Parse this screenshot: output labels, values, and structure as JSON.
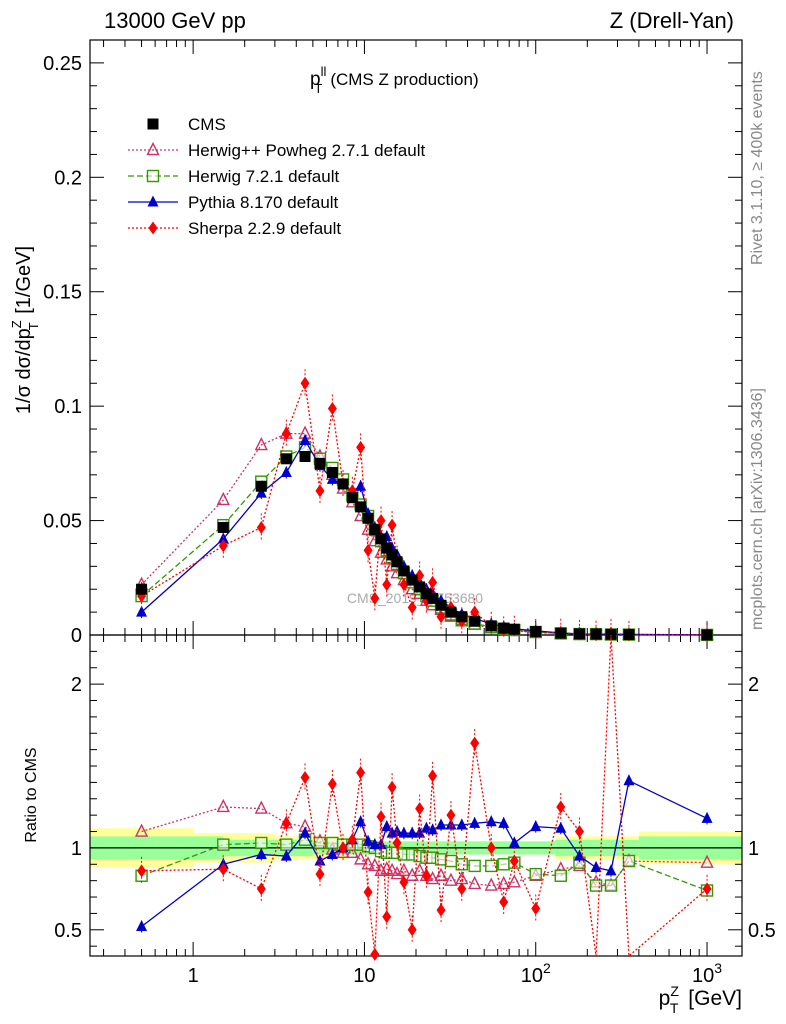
{
  "header": {
    "left": "13000 GeV pp",
    "right": "Z (Drell-Yan)"
  },
  "plot_title": {
    "main": "p",
    "sup": "ll",
    "sub": "T",
    "rest": "(CMS Z production)"
  },
  "side_labels": {
    "rivet": "Rivet 3.1.10, ≥ 400k events",
    "mcplots": "mcplots.cern.ch [arXiv:1306.3436]"
  },
  "watermark": "CMS_2019_I1753680",
  "axes": {
    "top_ylabel": "1/σ dσ/dp_T^Z [1/GeV]",
    "ratio_ylabel": "Ratio to CMS",
    "xlabel": "p_T^Z [GeV]"
  },
  "colors": {
    "cms": "#000000",
    "herwig_powheg": "#cc3366",
    "herwig721": "#339900",
    "pythia": "#0000cc",
    "sherpa": "#ff0000",
    "band_inner": "#99ff99",
    "band_outer": "#ffff99"
  },
  "chart_data": [
    {
      "type": "line",
      "panel": "main",
      "xscale": "log",
      "xlim": [
        0.25,
        1600
      ],
      "ylim": [
        0,
        0.26
      ],
      "x_ticks": [
        "1",
        "10",
        "10^2",
        "10^3"
      ],
      "y_ticks": [
        "0",
        "0.05",
        "0.1",
        "0.15",
        "0.2",
        "0.25"
      ],
      "legend_position": "top-left",
      "x": [
        0.5,
        1.5,
        2.5,
        3.5,
        4.5,
        5.5,
        6.5,
        7.5,
        8.5,
        9.5,
        10.5,
        11.5,
        12.5,
        13.5,
        14.5,
        15.5,
        17,
        19,
        21,
        23,
        25,
        28,
        32,
        37,
        44,
        55,
        65,
        75,
        100,
        140,
        180,
        225,
        275,
        350,
        1000
      ],
      "series": [
        {
          "name": "CMS",
          "key": "cms",
          "style": "square",
          "values": [
            0.02,
            0.047,
            0.065,
            0.077,
            0.078,
            0.075,
            0.071,
            0.066,
            0.06,
            0.056,
            0.051,
            0.046,
            0.042,
            0.038,
            0.035,
            0.032,
            0.028,
            0.024,
            0.021,
            0.018,
            0.016,
            0.013,
            0.01,
            0.008,
            0.006,
            0.004,
            0.003,
            0.0025,
            0.0015,
            0.0008,
            0.0005,
            0.0004,
            0.0003,
            0.0002,
            4e-05
          ]
        },
        {
          "name": "Herwig++ Powheg 2.7.1 default",
          "key": "herwig_powheg",
          "style": "open-triangle",
          "values": [
            0.022,
            0.059,
            0.083,
            0.088,
            0.088,
            0.078,
            0.07,
            0.064,
            0.058,
            0.052,
            0.046,
            0.041,
            0.036,
            0.033,
            0.03,
            0.027,
            0.024,
            0.02,
            0.018,
            0.015,
            0.013,
            0.011,
            0.008,
            0.006,
            0.0045,
            0.003,
            0.0022,
            0.0018,
            0.0012,
            0.0007,
            0.0004,
            0.0003,
            0.0002,
            0.00015,
            4e-05
          ]
        },
        {
          "name": "Herwig 7.2.1 default",
          "key": "herwig721",
          "style": "open-square",
          "values": [
            0.017,
            0.048,
            0.067,
            0.078,
            0.082,
            0.077,
            0.073,
            0.068,
            0.061,
            0.057,
            0.052,
            0.046,
            0.041,
            0.037,
            0.034,
            0.031,
            0.027,
            0.023,
            0.02,
            0.017,
            0.015,
            0.012,
            0.009,
            0.007,
            0.005,
            0.0035,
            0.0027,
            0.0022,
            0.0013,
            0.0007,
            0.0004,
            0.0004,
            0.0002,
            0.00018,
            3e-05
          ]
        },
        {
          "name": "Pythia 8.170 default",
          "key": "pythia",
          "style": "filled-triangle",
          "values": [
            0.01,
            0.042,
            0.062,
            0.071,
            0.085,
            0.074,
            0.068,
            0.066,
            0.063,
            0.065,
            0.053,
            0.047,
            0.043,
            0.043,
            0.038,
            0.035,
            0.03,
            0.026,
            0.023,
            0.02,
            0.018,
            0.015,
            0.012,
            0.009,
            0.0072,
            0.0048,
            0.0036,
            0.0027,
            0.0018,
            0.0009,
            0.0004,
            0.00035,
            0.0003,
            0.00028,
            5e-05
          ]
        },
        {
          "name": "Sherpa 2.2.9 default",
          "key": "sherpa",
          "style": "diamond",
          "values": [
            0.017,
            0.039,
            0.047,
            0.088,
            0.11,
            0.063,
            0.099,
            0.066,
            0.063,
            0.082,
            0.037,
            0.016,
            0.05,
            0.022,
            0.048,
            0.033,
            0.022,
            0.012,
            0.026,
            0.015,
            0.023,
            0.008,
            0.012,
            0.006,
            0.01,
            0.004,
            0.002,
            0.0023,
            0.0009,
            0.001,
            0.0005,
            0.0001,
            0.0009,
            5e-05,
            3e-05
          ]
        }
      ]
    },
    {
      "type": "line",
      "panel": "ratio",
      "xscale": "log",
      "xlim": [
        0.25,
        1600
      ],
      "ylim": [
        0.34,
        2.3
      ],
      "y_ticks": [
        "0.5",
        "1",
        "2"
      ],
      "band_inner": [
        [
          0.25,
          1.5,
          0.93,
          1.07
        ],
        [
          1.5,
          5,
          0.95,
          1.05
        ],
        [
          5,
          130,
          0.96,
          1.04
        ],
        [
          130,
          400,
          0.95,
          1.05
        ],
        [
          400,
          1600,
          0.93,
          1.07
        ]
      ],
      "band_outer": [
        [
          0.25,
          1.0,
          0.88,
          1.12
        ],
        [
          1.0,
          3.0,
          0.91,
          1.09
        ],
        [
          3.0,
          8.0,
          0.93,
          1.07
        ],
        [
          8.0,
          130,
          0.96,
          1.04
        ],
        [
          130,
          400,
          0.93,
          1.07
        ],
        [
          400,
          1600,
          0.9,
          1.1
        ]
      ],
      "x": [
        0.5,
        1.5,
        2.5,
        3.5,
        4.5,
        5.5,
        6.5,
        7.5,
        8.5,
        9.5,
        10.5,
        11.5,
        12.5,
        13.5,
        14.5,
        15.5,
        17,
        19,
        21,
        23,
        25,
        28,
        32,
        37,
        44,
        55,
        65,
        75,
        100,
        140,
        180,
        225,
        275,
        350,
        1000
      ],
      "series": [
        {
          "name": "Herwig++ Powheg 2.7.1 default",
          "key": "herwig_powheg",
          "style": "open-triangle",
          "values": [
            1.1,
            1.25,
            1.24,
            1.15,
            1.13,
            1.04,
            0.99,
            0.97,
            0.97,
            0.93,
            0.9,
            0.89,
            0.86,
            0.87,
            0.86,
            0.84,
            0.86,
            0.83,
            0.86,
            0.83,
            0.81,
            0.83,
            0.8,
            0.81,
            0.78,
            0.77,
            0.78,
            0.79,
            0.83,
            0.87,
            0.89,
            0.79,
            0.77,
            0.92,
            0.91
          ]
        },
        {
          "name": "Herwig 7.2.1 default",
          "key": "herwig721",
          "style": "open-square",
          "values": [
            0.83,
            1.02,
            1.03,
            1.02,
            1.05,
            1.03,
            1.03,
            1.02,
            1.02,
            1.02,
            1.01,
            1.0,
            0.98,
            0.97,
            0.97,
            0.97,
            0.96,
            0.96,
            0.95,
            0.94,
            0.94,
            0.93,
            0.92,
            0.9,
            0.89,
            0.89,
            0.9,
            0.91,
            0.84,
            0.83,
            0.91,
            0.77,
            0.77,
            0.92,
            0.74
          ]
        },
        {
          "name": "Pythia 8.170 default",
          "key": "pythia",
          "style": "filled-triangle",
          "values": [
            0.52,
            0.9,
            0.96,
            0.95,
            1.09,
            0.92,
            0.96,
            1.0,
            1.05,
            1.16,
            1.04,
            1.02,
            1.02,
            1.13,
            1.09,
            1.1,
            1.09,
            1.09,
            1.09,
            1.12,
            1.11,
            1.14,
            1.14,
            1.14,
            1.15,
            1.16,
            1.15,
            1.03,
            1.13,
            1.12,
            0.95,
            0.88,
            0.86,
            1.41,
            1.18
          ]
        },
        {
          "name": "Sherpa 2.2.9 default",
          "key": "sherpa",
          "style": "diamond",
          "values": [
            0.86,
            0.87,
            0.75,
            1.15,
            1.43,
            0.84,
            1.39,
            1.0,
            1.05,
            1.46,
            0.73,
            0.35,
            1.19,
            0.58,
            1.37,
            1.03,
            0.79,
            0.5,
            1.24,
            0.83,
            1.44,
            0.62,
            1.2,
            0.75,
            1.64,
            1.0,
            0.67,
            0.92,
            0.63,
            1.25,
            1.1,
            0.25,
            2.6,
            0.25,
            0.75
          ]
        }
      ]
    }
  ]
}
